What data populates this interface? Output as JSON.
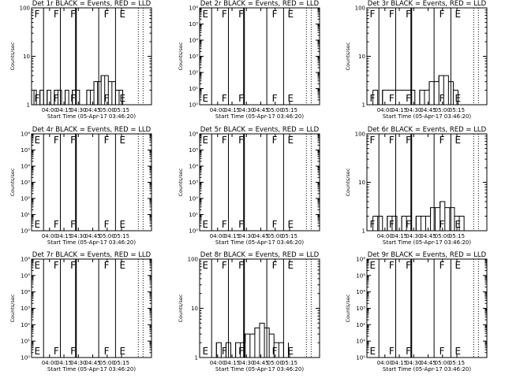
{
  "common": {
    "xlabel": "Start Time (05-Apr-17 03:46:20)",
    "ylabel": "Counts/sec",
    "xtick_labels": [
      "04:00",
      "04:15",
      "04:30",
      "04:45",
      "05:00",
      "05:15"
    ],
    "event_color": "#000000",
    "lld_color": "#ff0000"
  },
  "chart_data": [
    {
      "type": "line",
      "title": "Det 1r BLACK = Events, RED = LLD",
      "yscale": "log",
      "ytick_labels": [
        "1",
        "10",
        "100"
      ],
      "flags": [
        "F",
        "F",
        "F",
        "F",
        "E"
      ],
      "events": [
        [
          0.02,
          2
        ],
        [
          0.04,
          1
        ],
        [
          0.07,
          2
        ],
        [
          0.1,
          1
        ],
        [
          0.13,
          2
        ],
        [
          0.16,
          1
        ],
        [
          0.19,
          2
        ],
        [
          0.22,
          2
        ],
        [
          0.25,
          1
        ],
        [
          0.28,
          2
        ],
        [
          0.31,
          1
        ],
        [
          0.34,
          2
        ],
        [
          0.37,
          2
        ],
        [
          0.4,
          1
        ],
        [
          0.43,
          1
        ],
        [
          0.46,
          2
        ],
        [
          0.49,
          2
        ],
        [
          0.52,
          3
        ],
        [
          0.55,
          3
        ],
        [
          0.58,
          4
        ],
        [
          0.61,
          4
        ],
        [
          0.64,
          3
        ],
        [
          0.67,
          3
        ],
        [
          0.7,
          2
        ],
        [
          0.73,
          2
        ],
        [
          0.76,
          1
        ]
      ]
    },
    {
      "type": "line",
      "title": "Det 2r BLACK = Events, RED = LLD",
      "yscale": "log",
      "ytick_labels": [
        "10⁰",
        "10¹",
        "10²",
        "10³",
        "10⁴",
        "10⁵",
        "10⁶"
      ],
      "flags": [
        "E",
        "F",
        "F",
        "F",
        "E"
      ],
      "events": []
    },
    {
      "type": "line",
      "title": "Det 3r BLACK = Events, RED = LLD",
      "yscale": "log",
      "ytick_labels": [
        "1",
        "10",
        "100"
      ],
      "flags": [
        "F",
        "F",
        "F",
        "F",
        "E"
      ],
      "events": [
        [
          0.05,
          2
        ],
        [
          0.09,
          1
        ],
        [
          0.13,
          2
        ],
        [
          0.4,
          1
        ],
        [
          0.44,
          2
        ],
        [
          0.48,
          2
        ],
        [
          0.52,
          3
        ],
        [
          0.56,
          3
        ],
        [
          0.6,
          4
        ],
        [
          0.64,
          4
        ],
        [
          0.68,
          3
        ],
        [
          0.72,
          2
        ],
        [
          0.76,
          2
        ]
      ]
    },
    {
      "type": "line",
      "title": "Det 4r BLACK = Events, RED = LLD",
      "yscale": "log",
      "ytick_labels": [
        "10⁰",
        "10¹",
        "10²",
        "10³",
        "10⁴",
        "10⁵",
        "10⁶"
      ],
      "flags": [
        "E",
        "F",
        "F",
        "F",
        "E"
      ],
      "events": []
    },
    {
      "type": "line",
      "title": "Det 5r BLACK = Events, RED = LLD",
      "yscale": "log",
      "ytick_labels": [
        "10⁰",
        "10¹",
        "10²",
        "10³",
        "10⁴",
        "10⁵",
        "10⁶"
      ],
      "flags": [
        "E",
        "F",
        "F",
        "F",
        "E"
      ],
      "events": []
    },
    {
      "type": "line",
      "title": "Det 6r BLACK = Events, RED = LLD",
      "yscale": "log",
      "ytick_labels": [
        "1",
        "10",
        "100"
      ],
      "flags": [
        "F",
        "F",
        "F",
        "F",
        "E"
      ],
      "events": [
        [
          0.05,
          2
        ],
        [
          0.09,
          2
        ],
        [
          0.13,
          1
        ],
        [
          0.17,
          2
        ],
        [
          0.21,
          2
        ],
        [
          0.25,
          1
        ],
        [
          0.29,
          2
        ],
        [
          0.33,
          2
        ],
        [
          0.37,
          1
        ],
        [
          0.41,
          2
        ],
        [
          0.45,
          2
        ],
        [
          0.49,
          2
        ],
        [
          0.53,
          3
        ],
        [
          0.57,
          3
        ],
        [
          0.61,
          4
        ],
        [
          0.65,
          3
        ],
        [
          0.69,
          3
        ],
        [
          0.73,
          2
        ],
        [
          0.77,
          2
        ],
        [
          0.81,
          1
        ]
      ]
    },
    {
      "type": "line",
      "title": "Det 7r BLACK = Events, RED = LLD",
      "yscale": "log",
      "ytick_labels": [
        "10⁰",
        "10¹",
        "10²",
        "10³",
        "10⁴",
        "10⁵",
        "10⁶"
      ],
      "flags": [
        "E",
        "F",
        "F",
        "F",
        "E"
      ],
      "events": []
    },
    {
      "type": "line",
      "title": "Det 8r BLACK = Events, RED = LLD",
      "yscale": "log",
      "ytick_labels": [
        "1",
        "10",
        "100"
      ],
      "flags": [
        "E",
        "F",
        "F",
        "F",
        "E"
      ],
      "events": [
        [
          0.1,
          1
        ],
        [
          0.14,
          2
        ],
        [
          0.18,
          1
        ],
        [
          0.22,
          2
        ],
        [
          0.26,
          1
        ],
        [
          0.3,
          2
        ],
        [
          0.34,
          2
        ],
        [
          0.38,
          3
        ],
        [
          0.42,
          3
        ],
        [
          0.46,
          4
        ],
        [
          0.5,
          5
        ],
        [
          0.54,
          4
        ],
        [
          0.58,
          3
        ],
        [
          0.62,
          2
        ],
        [
          0.66,
          2
        ],
        [
          0.7,
          1
        ],
        [
          0.74,
          2
        ]
      ]
    },
    {
      "type": "line",
      "title": "Det 9r BLACK = Events, RED = LLD",
      "yscale": "log",
      "ytick_labels": [
        "10⁰",
        "10¹",
        "10²",
        "10³",
        "10⁴",
        "10⁵",
        "10⁶"
      ],
      "flags": [
        "E",
        "F",
        "F",
        "F",
        "E"
      ],
      "events": []
    }
  ]
}
